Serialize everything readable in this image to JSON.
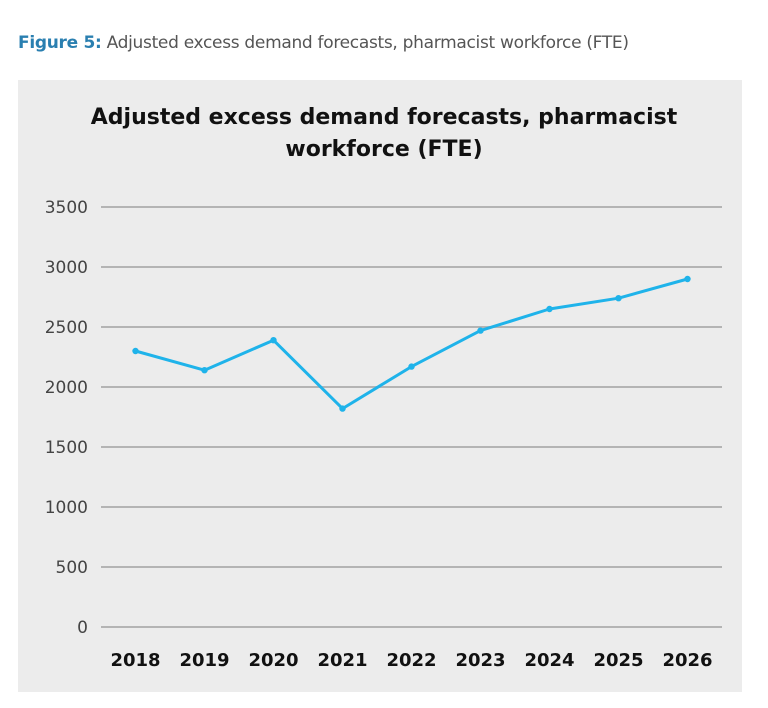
{
  "figure_caption": {
    "label": "Figure 5:",
    "text": "Adjusted excess demand forecasts, pharmacist workforce (FTE)"
  },
  "chart_data": {
    "type": "line",
    "title": "Adjusted excess demand forecasts, pharmacist workforce (FTE)",
    "title_lines": [
      "Adjusted excess demand forecasts, pharmacist",
      "workforce (FTE)"
    ],
    "categories": [
      "2018",
      "2019",
      "2020",
      "2021",
      "2022",
      "2023",
      "2024",
      "2025",
      "2026"
    ],
    "series": [
      {
        "values": [
          2300,
          2140,
          2390,
          1820,
          2170,
          2470,
          2650,
          2740,
          2900
        ],
        "color": "#1fb3ea"
      }
    ],
    "yticks": [
      0,
      500,
      1000,
      1500,
      2000,
      2500,
      3000,
      3500
    ],
    "ylim": [
      0,
      3500
    ],
    "grid": true,
    "legend": "none",
    "background": "#ececec"
  }
}
